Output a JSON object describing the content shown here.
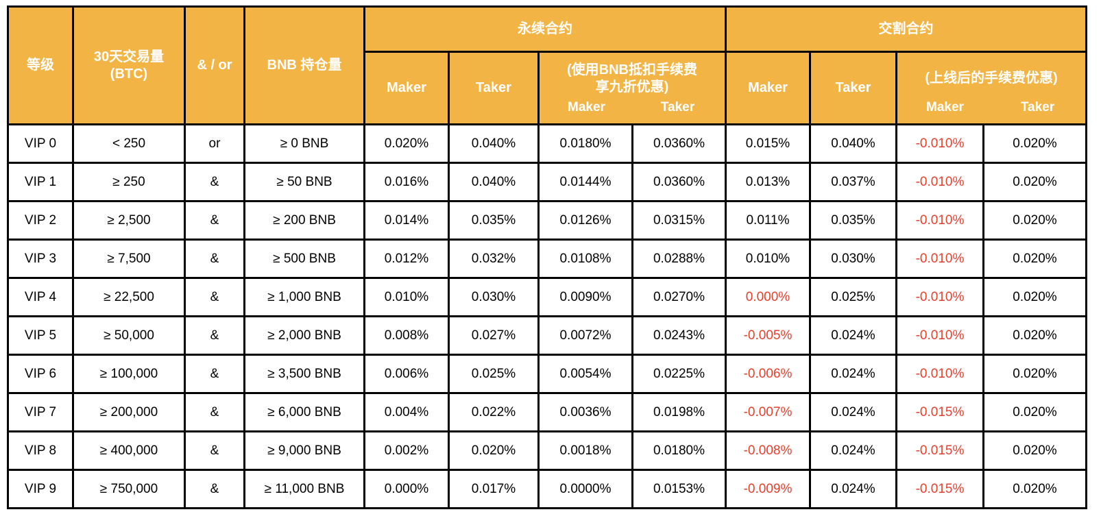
{
  "colors": {
    "header_bg": "#f2b545",
    "header_text": "#ffffff",
    "body_text": "#000000",
    "negative_text": "#e83e2c",
    "border": "#000000"
  },
  "table": {
    "header": {
      "level": "等级",
      "volume_30d": "30天交易量\n(BTC)",
      "and_or": "& / or",
      "bnb_holding": "BNB 持仓量",
      "perpetual_group": "永续合约",
      "delivery_group": "交割合约",
      "maker": "Maker",
      "taker": "Taker",
      "perp_bnb_discount": "(使用BNB抵扣手续费\n享九折优惠)",
      "delivery_promo": "(上线后的手续费优惠)"
    },
    "cell_names": [
      "level-cell",
      "volume-30d-cell",
      "and-or-cell",
      "bnb-holding-cell",
      "perp-maker-cell",
      "perp-taker-cell",
      "perp-bnb-maker-cell",
      "perp-bnb-taker-cell",
      "delivery-maker-cell",
      "delivery-taker-cell",
      "delivery-promo-maker-cell",
      "delivery-promo-taker-cell"
    ],
    "rows": [
      {
        "cells": [
          "VIP 0",
          "< 250",
          "or",
          "≥ 0 BNB",
          "0.020%",
          "0.040%",
          "0.0180%",
          "0.0360%",
          "0.015%",
          "0.040%",
          "-0.010%",
          "0.020%"
        ],
        "red": [
          10
        ]
      },
      {
        "cells": [
          "VIP 1",
          "≥ 250",
          "&",
          "≥ 50 BNB",
          "0.016%",
          "0.040%",
          "0.0144%",
          "0.0360%",
          "0.013%",
          "0.037%",
          "-0.010%",
          "0.020%"
        ],
        "red": [
          10
        ]
      },
      {
        "cells": [
          "VIP 2",
          "≥ 2,500",
          "&",
          "≥ 200 BNB",
          "0.014%",
          "0.035%",
          "0.0126%",
          "0.0315%",
          "0.011%",
          "0.035%",
          "-0.010%",
          "0.020%"
        ],
        "red": [
          10
        ]
      },
      {
        "cells": [
          "VIP 3",
          "≥ 7,500",
          "&",
          "≥ 500 BNB",
          "0.012%",
          "0.032%",
          "0.0108%",
          "0.0288%",
          "0.010%",
          "0.030%",
          "-0.010%",
          "0.020%"
        ],
        "red": [
          10
        ]
      },
      {
        "cells": [
          "VIP 4",
          "≥ 22,500",
          "&",
          "≥ 1,000 BNB",
          "0.010%",
          "0.030%",
          "0.0090%",
          "0.0270%",
          "0.000%",
          "0.025%",
          "-0.010%",
          "0.020%"
        ],
        "red": [
          8,
          10
        ]
      },
      {
        "cells": [
          "VIP 5",
          "≥ 50,000",
          "&",
          "≥ 2,000 BNB",
          "0.008%",
          "0.027%",
          "0.0072%",
          "0.0243%",
          "-0.005%",
          "0.024%",
          "-0.010%",
          "0.020%"
        ],
        "red": [
          8,
          10
        ]
      },
      {
        "cells": [
          "VIP 6",
          "≥ 100,000",
          "&",
          "≥ 3,500 BNB",
          "0.006%",
          "0.025%",
          "0.0054%",
          "0.0225%",
          "-0.006%",
          "0.024%",
          "-0.010%",
          "0.020%"
        ],
        "red": [
          8,
          10
        ]
      },
      {
        "cells": [
          "VIP 7",
          "≥ 200,000",
          "&",
          "≥ 6,000 BNB",
          "0.004%",
          "0.022%",
          "0.0036%",
          "0.0198%",
          "-0.007%",
          "0.024%",
          "-0.015%",
          "0.020%"
        ],
        "red": [
          8,
          10
        ]
      },
      {
        "cells": [
          "VIP 8",
          "≥ 400,000",
          "&",
          "≥ 9,000 BNB",
          "0.002%",
          "0.020%",
          "0.0018%",
          "0.0180%",
          "-0.008%",
          "0.024%",
          "-0.015%",
          "0.020%"
        ],
        "red": [
          8,
          10
        ]
      },
      {
        "cells": [
          "VIP 9",
          "≥ 750,000",
          "&",
          "≥ 11,000 BNB",
          "0.000%",
          "0.017%",
          "0.0000%",
          "0.0153%",
          "-0.009%",
          "0.024%",
          "-0.015%",
          "0.020%"
        ],
        "red": [
          8,
          10
        ]
      }
    ]
  }
}
